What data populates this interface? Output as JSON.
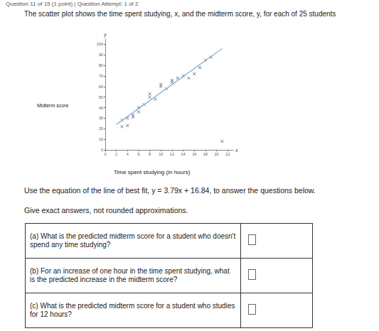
{
  "header": "Question 11 of 15 (1 point) | Question Attempt: 1 of 2",
  "intro": "The scatter plot shows the time spent studying, x, and the midterm score, y, for each of 25 students",
  "chart_data": {
    "type": "scatter",
    "x_label": "Time spent studying (in hours)",
    "y_label": "Midterm score",
    "x_symbol": "x",
    "y_symbol": "y",
    "xlim": [
      0,
      23
    ],
    "ylim": [
      0,
      105
    ],
    "xticks": [
      0,
      2,
      4,
      6,
      8,
      10,
      12,
      14,
      16,
      18,
      20,
      22
    ],
    "yticks": [
      0,
      10,
      20,
      30,
      40,
      50,
      60,
      70,
      80,
      90,
      100
    ],
    "grid": false,
    "series": [
      {
        "type": "scatter",
        "color": "#555555",
        "marker": "x",
        "x": [
          3,
          4,
          3,
          4,
          5,
          5,
          6,
          6,
          7,
          8,
          8,
          9,
          10,
          10,
          11,
          12,
          12,
          13,
          14,
          15,
          16,
          17,
          18,
          19,
          21
        ],
        "values": [
          22,
          23,
          28,
          30,
          31,
          33,
          36,
          40,
          43,
          50,
          53,
          48,
          60,
          62,
          58,
          66,
          64,
          68,
          70,
          68,
          72,
          78,
          85,
          88,
          8
        ]
      },
      {
        "type": "line",
        "color": "#6fa8dc",
        "line_style": "solid",
        "x": [
          2,
          21
        ],
        "values": [
          24,
          96
        ]
      }
    ]
  },
  "instructions": [
    "Use the equation of the line of best fit, y = 3.79x + 16.84, to answer the questions below.",
    "Give exact answers, not rounded approximations."
  ],
  "questions": [
    "(a) What is the predicted midterm score for a student who doesn't spend any time studying?",
    "(b) For an increase of one hour in the time spent studying, what is the predicted increase in the midterm score?",
    "(c) What is the predicted midterm score for a student who studies for 12 hours?"
  ]
}
